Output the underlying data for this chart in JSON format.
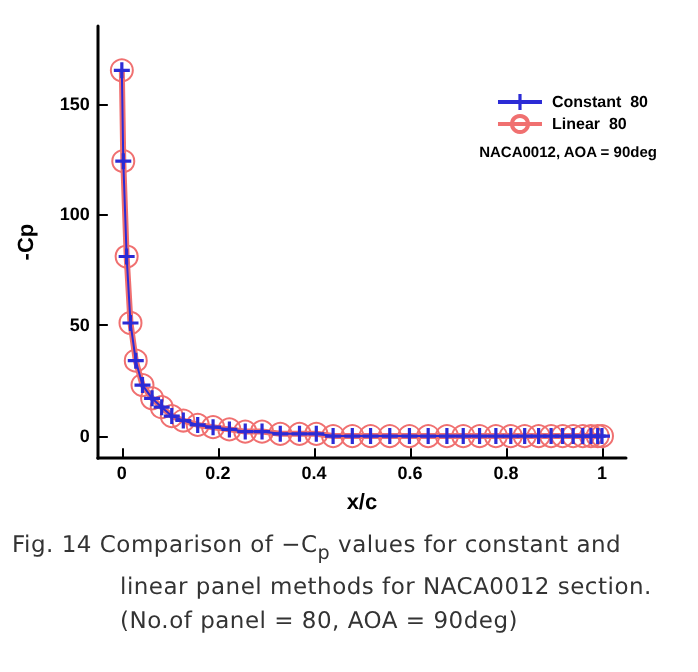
{
  "chart_data": {
    "type": "line",
    "xlabel": "x/c",
    "ylabel": "-Cp",
    "x": [
      0,
      0.003,
      0.01,
      0.018,
      0.029,
      0.043,
      0.063,
      0.083,
      0.104,
      0.128,
      0.158,
      0.19,
      0.224,
      0.257,
      0.292,
      0.33,
      0.37,
      0.405,
      0.44,
      0.48,
      0.518,
      0.558,
      0.599,
      0.638,
      0.677,
      0.711,
      0.745,
      0.779,
      0.81,
      0.839,
      0.868,
      0.894,
      0.918,
      0.94,
      0.96,
      0.977,
      0.991,
      1
    ],
    "series": [
      {
        "name": "Constant  80",
        "color": "#2b2bd6",
        "marker": "cross",
        "values": [
          165,
          124,
          81,
          51,
          34,
          23,
          17,
          13,
          9,
          7,
          5,
          4,
          3,
          2,
          2,
          1,
          1,
          1,
          0,
          0,
          0,
          0,
          0,
          0,
          0,
          0,
          0,
          0,
          0,
          0,
          0,
          0,
          0,
          0,
          0,
          0,
          0,
          0
        ]
      },
      {
        "name": "Linear  80",
        "color": "#f07070",
        "marker": "circle",
        "values": [
          165,
          124,
          81,
          51,
          34,
          23,
          17,
          13,
          9,
          7,
          5,
          4,
          3,
          2,
          2,
          1,
          1,
          1,
          0,
          0,
          0,
          0,
          0,
          0,
          0,
          0,
          0,
          0,
          0,
          0,
          0,
          0,
          0,
          0,
          0,
          0,
          0,
          0
        ]
      }
    ],
    "xlim": [
      -0.05,
      1.05
    ],
    "xticks": [
      0,
      0.2,
      0.4,
      0.6,
      0.8,
      1
    ],
    "ylim": [
      -10,
      185
    ],
    "yticks": [
      0,
      50,
      100,
      150
    ],
    "grid": false,
    "legend": "top right",
    "line_style": "solid",
    "annotations": [
      "NACA0012, AOA = 90deg",
      "Fig. 14 Comparison of −C$_{p}$ values for constant and linear panel methods for NACA0012 section.\n(No.of panel = 80, AOA = 90deg)"
    ]
  }
}
